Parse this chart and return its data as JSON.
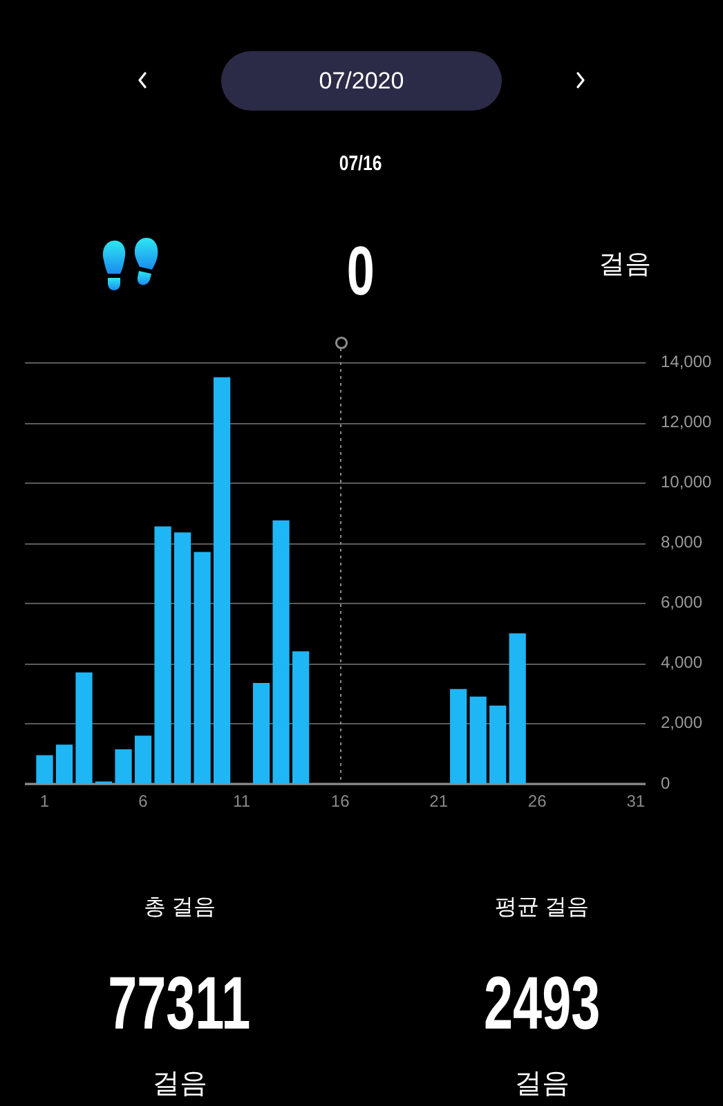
{
  "chart_data": {
    "type": "bar",
    "title": "07/2020",
    "subtitle": "07/16",
    "x": [
      1,
      2,
      3,
      4,
      5,
      6,
      7,
      8,
      9,
      10,
      11,
      12,
      13,
      14,
      15,
      16,
      17,
      18,
      19,
      20,
      21,
      22,
      23,
      24,
      25,
      26,
      27,
      28,
      29,
      30,
      31
    ],
    "values": [
      950,
      1300,
      3700,
      80,
      1150,
      1600,
      8550,
      8350,
      7700,
      13500,
      0,
      3350,
      8750,
      4400,
      0,
      0,
      0,
      0,
      0,
      0,
      0,
      3150,
      2900,
      2600,
      5000,
      0,
      0,
      0,
      0,
      0,
      0
    ],
    "color": "#1fb6f6",
    "xlim": [
      0,
      31.5
    ],
    "xticks": [
      1,
      6,
      11,
      16,
      21,
      26,
      31
    ],
    "ylim": [
      0,
      14000
    ],
    "yticks": [
      0,
      {
        "value": 2000,
        "label": "2,000"
      },
      {
        "value": 4000,
        "label": "4,000"
      },
      {
        "value": 6000,
        "label": "6,000"
      },
      {
        "value": 8000,
        "label": "8,000"
      },
      {
        "value": 10000,
        "label": "10,000"
      },
      {
        "value": 12000,
        "label": "12,000"
      },
      {
        "value": 14000,
        "label": "14,000"
      }
    ],
    "grid": "y",
    "ref_lines": [
      {
        "axis": "x",
        "value": 16,
        "color": "#8c8c8c",
        "line_style": "dotted"
      }
    ],
    "annotations": [
      "0",
      "걸음",
      "총 걸음",
      "77311",
      "걸음",
      "평균 걸음",
      "2493",
      "걸음"
    ]
  }
}
